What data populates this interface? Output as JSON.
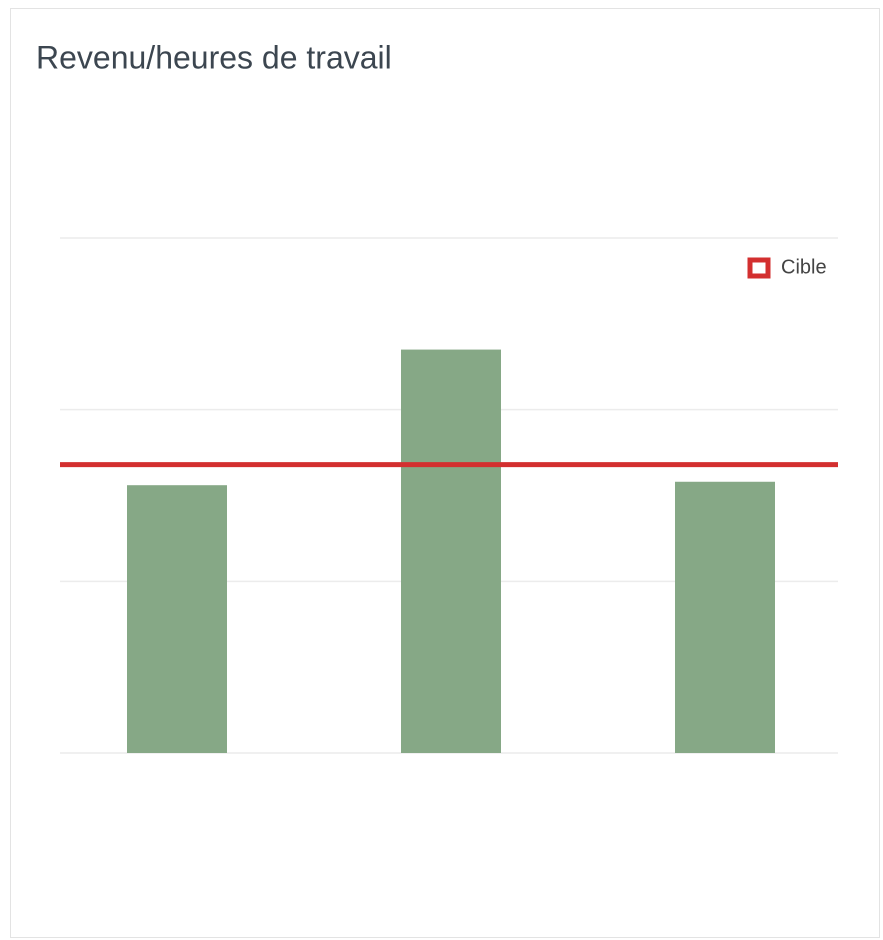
{
  "chart_data": {
    "type": "bar",
    "title": "Revenu/heures de travail",
    "categories": [
      null,
      null,
      null
    ],
    "values": [
      1.56,
      2.35,
      1.58
    ],
    "color": "#86a886",
    "target": {
      "name": "Cible",
      "value": 1.68,
      "color": "#d32f2f"
    },
    "ylim": [
      0,
      3
    ],
    "yticks": [
      0,
      1,
      2,
      3
    ],
    "grid": true,
    "legend": "top-right"
  }
}
